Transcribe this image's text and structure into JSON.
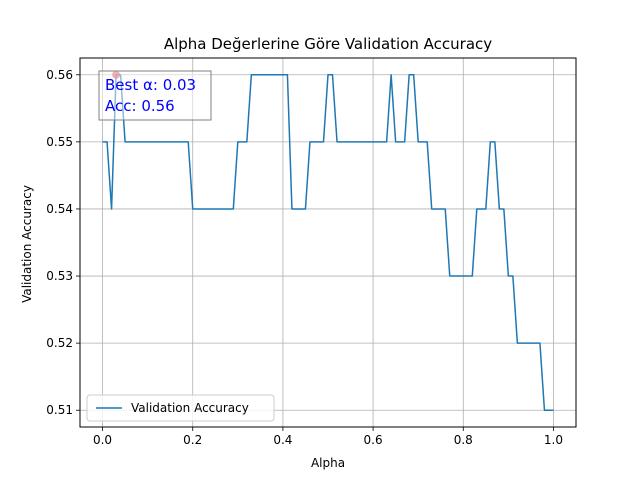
{
  "chart_data": {
    "type": "line",
    "title": "Alpha Değerlerine Göre Validation Accuracy",
    "xlabel": "Alpha",
    "ylabel": "Validation Accuracy",
    "xlim": [
      -0.05,
      1.05
    ],
    "ylim": [
      0.5075,
      0.5625
    ],
    "xticks": [
      0.0,
      0.2,
      0.4,
      0.6,
      0.8,
      1.0
    ],
    "xtick_labels": [
      "0.0",
      "0.2",
      "0.4",
      "0.6",
      "0.8",
      "1.0"
    ],
    "yticks": [
      0.51,
      0.52,
      0.53,
      0.54,
      0.55,
      0.56
    ],
    "ytick_labels": [
      "0.51",
      "0.52",
      "0.53",
      "0.54",
      "0.55",
      "0.56"
    ],
    "grid": true,
    "legend": {
      "position": "lower-left",
      "entries": [
        "Validation Accuracy"
      ]
    },
    "series": [
      {
        "name": "Validation Accuracy",
        "color": "#1f77b4",
        "x": [
          0.0,
          0.01,
          0.02,
          0.03,
          0.04,
          0.05,
          0.06,
          0.07,
          0.08,
          0.09,
          0.1,
          0.11,
          0.12,
          0.13,
          0.14,
          0.15,
          0.16,
          0.17,
          0.18,
          0.19,
          0.2,
          0.21,
          0.22,
          0.23,
          0.24,
          0.25,
          0.26,
          0.27,
          0.28,
          0.29,
          0.3,
          0.31,
          0.32,
          0.33,
          0.34,
          0.35,
          0.36,
          0.37,
          0.38,
          0.39,
          0.4,
          0.41,
          0.42,
          0.43,
          0.44,
          0.45,
          0.46,
          0.47,
          0.48,
          0.49,
          0.5,
          0.51,
          0.52,
          0.53,
          0.54,
          0.55,
          0.56,
          0.57,
          0.58,
          0.59,
          0.6,
          0.61,
          0.62,
          0.63,
          0.64,
          0.65,
          0.66,
          0.67,
          0.68,
          0.69,
          0.7,
          0.71,
          0.72,
          0.73,
          0.74,
          0.75,
          0.76,
          0.77,
          0.78,
          0.79,
          0.8,
          0.81,
          0.82,
          0.83,
          0.84,
          0.85,
          0.86,
          0.87,
          0.88,
          0.89,
          0.9,
          0.91,
          0.92,
          0.93,
          0.94,
          0.95,
          0.96,
          0.97,
          0.98,
          0.99,
          1.0
        ],
        "values": [
          0.55,
          0.55,
          0.54,
          0.56,
          0.56,
          0.55,
          0.55,
          0.55,
          0.55,
          0.55,
          0.55,
          0.55,
          0.55,
          0.55,
          0.55,
          0.55,
          0.55,
          0.55,
          0.55,
          0.55,
          0.54,
          0.54,
          0.54,
          0.54,
          0.54,
          0.54,
          0.54,
          0.54,
          0.54,
          0.54,
          0.55,
          0.55,
          0.55,
          0.56,
          0.56,
          0.56,
          0.56,
          0.56,
          0.56,
          0.56,
          0.56,
          0.56,
          0.54,
          0.54,
          0.54,
          0.54,
          0.55,
          0.55,
          0.55,
          0.55,
          0.56,
          0.56,
          0.55,
          0.55,
          0.55,
          0.55,
          0.55,
          0.55,
          0.55,
          0.55,
          0.55,
          0.55,
          0.55,
          0.55,
          0.56,
          0.55,
          0.55,
          0.55,
          0.56,
          0.56,
          0.55,
          0.55,
          0.55,
          0.54,
          0.54,
          0.54,
          0.54,
          0.53,
          0.53,
          0.53,
          0.53,
          0.53,
          0.53,
          0.54,
          0.54,
          0.54,
          0.55,
          0.55,
          0.54,
          0.54,
          0.53,
          0.53,
          0.52,
          0.52,
          0.52,
          0.52,
          0.52,
          0.52,
          0.51,
          0.51,
          0.51
        ]
      }
    ],
    "best_point": {
      "x": 0.03,
      "y": 0.56,
      "color": "#d62728"
    },
    "annotation": {
      "line1": "Best α: 0.03",
      "line2": "Acc: 0.56",
      "color": "#0000ff"
    }
  }
}
